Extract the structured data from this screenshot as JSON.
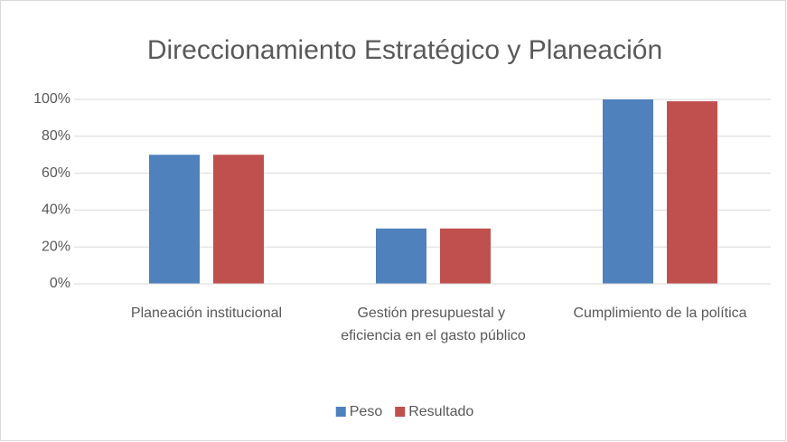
{
  "chart_data": {
    "type": "bar",
    "title": "Direccionamiento Estratégico y Planeación",
    "categories": [
      "Planeación institucional",
      "Gestión presupuestal y eficiencia en el gasto público",
      "Cumplimiento de la política"
    ],
    "series": [
      {
        "name": "Peso",
        "color": "#4f81bd",
        "values": [
          70,
          30,
          100
        ]
      },
      {
        "name": "Resultado",
        "color": "#c0504d",
        "values": [
          70,
          30,
          99
        ]
      }
    ],
    "ylim": [
      0,
      100
    ],
    "yticks": [
      {
        "value": 0,
        "label": "0%"
      },
      {
        "value": 20,
        "label": "20%"
      },
      {
        "value": 40,
        "label": "40%"
      },
      {
        "value": 60,
        "label": "60%"
      },
      {
        "value": 80,
        "label": "80%"
      },
      {
        "value": 100,
        "label": "100%"
      }
    ],
    "grid": true,
    "legend": "bottom"
  }
}
